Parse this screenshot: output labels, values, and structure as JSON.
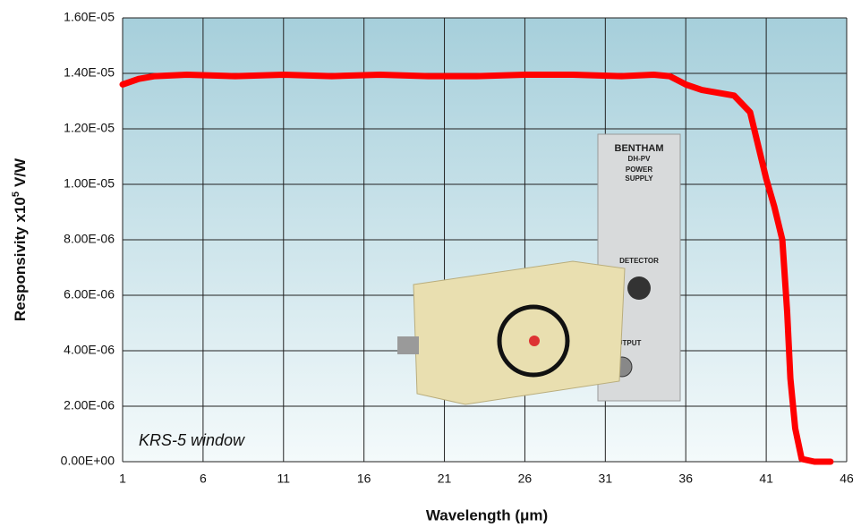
{
  "chart_data": {
    "type": "line",
    "xlabel": "Wavelength  (μm)",
    "ylabel": "Responsivity  x10",
    "ylabel_sup": "5",
    "ylabel_unit": "V/W",
    "annotation": "KRS-5 window",
    "image_labels": [
      "BENTHAM",
      "DH-PV",
      "POWER",
      "SUPPLY",
      "DETECTOR",
      "OUTPUT"
    ],
    "x": [
      1,
      2,
      3,
      5,
      8,
      11,
      14,
      17,
      20,
      23,
      26,
      29,
      32,
      34,
      35,
      36,
      37,
      38,
      39,
      39.5,
      40,
      40.5,
      41,
      41.5,
      42,
      42.3,
      42.5,
      42.8,
      43.2,
      44,
      45
    ],
    "series": [
      {
        "color": "#ff0000",
        "values": [
          1.36e-05,
          1.38e-05,
          1.39e-05,
          1.395e-05,
          1.39e-05,
          1.395e-05,
          1.39e-05,
          1.395e-05,
          1.39e-05,
          1.39e-05,
          1.395e-05,
          1.395e-05,
          1.39e-05,
          1.395e-05,
          1.39e-05,
          1.36e-05,
          1.34e-05,
          1.33e-05,
          1.32e-05,
          1.29e-05,
          1.26e-05,
          1.14e-05,
          1.02e-05,
          9.2e-06,
          8e-06,
          5.4e-06,
          3e-06,
          1.2e-06,
          1e-07,
          0,
          0
        ]
      }
    ],
    "xlim": [
      1,
      46
    ],
    "xticks": [
      1,
      6,
      11,
      16,
      21,
      26,
      31,
      36,
      41,
      46
    ],
    "ylim": [
      0,
      1.6e-05
    ],
    "yticks": [
      {
        "value": 0,
        "label": "0.00E+00"
      },
      {
        "value": 2e-06,
        "label": "2.00E-06"
      },
      {
        "value": 4e-06,
        "label": "4.00E-06"
      },
      {
        "value": 6e-06,
        "label": "6.00E-06"
      },
      {
        "value": 8e-06,
        "label": "8.00E-06"
      },
      {
        "value": 1e-05,
        "label": "1.00E-05"
      },
      {
        "value": 1.2e-05,
        "label": "1.20E-05"
      },
      {
        "value": 1.4e-05,
        "label": "1.40E-05"
      },
      {
        "value": 1.6e-05,
        "label": "1.60E-05"
      }
    ],
    "grid": true
  }
}
